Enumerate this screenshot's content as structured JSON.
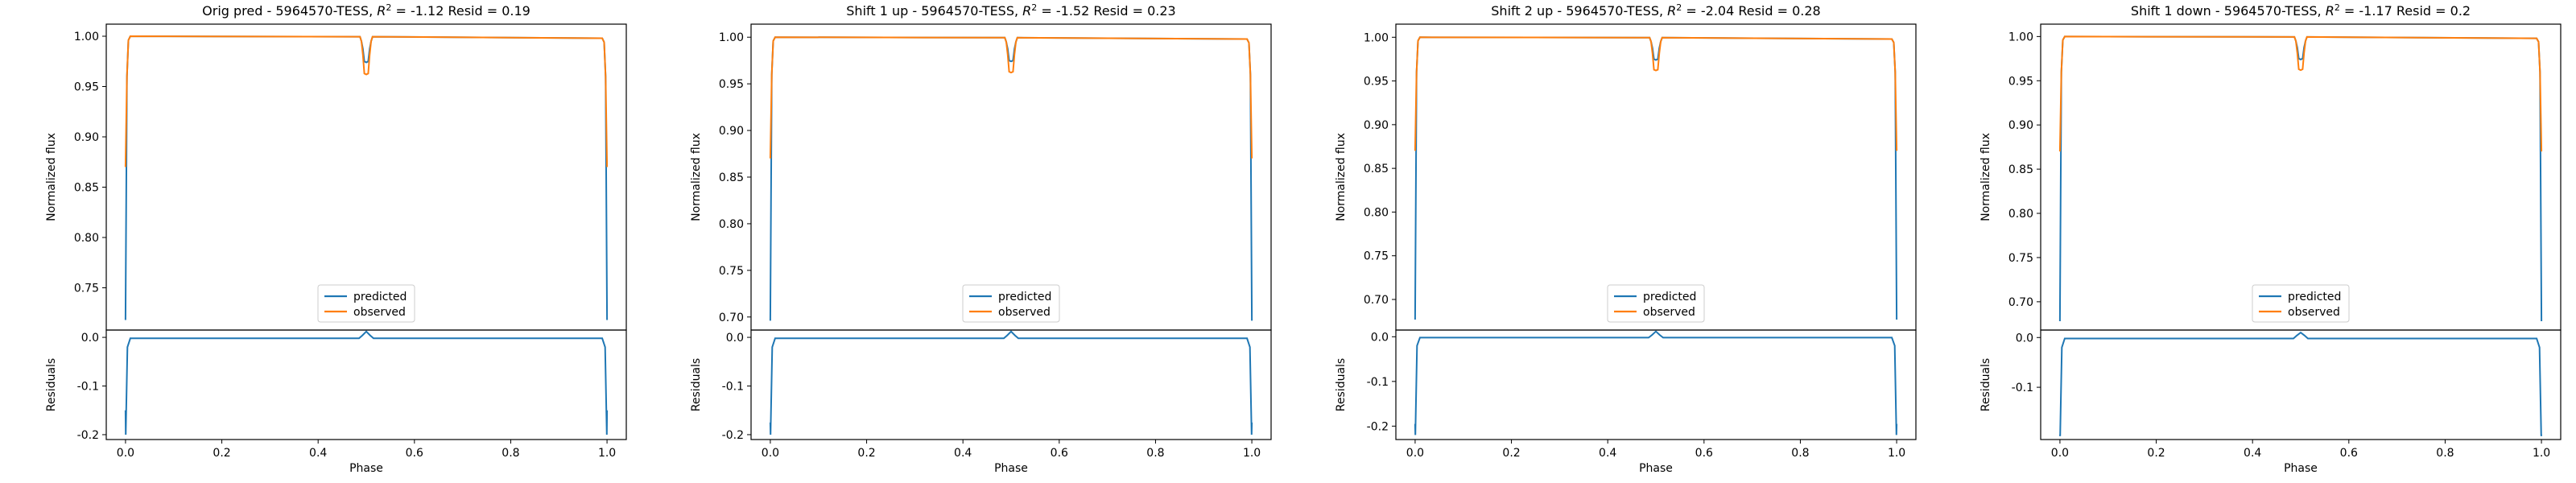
{
  "colors": {
    "predicted": "#1f77b4",
    "observed": "#ff7f0e",
    "axes": "#000000"
  },
  "chart_data": [
    {
      "type": "line",
      "title_prefix": "Orig pred - 5964570-TESS, ",
      "title_suffix": " = -1.12 Resid = 0.19",
      "r2_symbol": "R",
      "r2_sup": "2",
      "top": {
        "ylabel": "Normalized flux",
        "ylim": [
          0.708,
          1.012
        ],
        "yticks": [
          0.75,
          0.8,
          0.85,
          0.9,
          0.95,
          1.0
        ],
        "yticklabels": [
          "0.75",
          "0.80",
          "0.85",
          "0.90",
          "0.95",
          "1.00"
        ],
        "predicted_edge": 0.718,
        "observed_edge": 0.87,
        "dip_predicted": 0.975,
        "dip_observed": 0.963,
        "legend": [
          "predicted",
          "observed"
        ],
        "legend_loc": "lower center"
      },
      "bottom": {
        "ylabel": "Residuals",
        "ylim": [
          -0.21,
          0.015
        ],
        "yticks": [
          -0.2,
          -0.1,
          0.0
        ],
        "yticklabels": [
          "-0.2",
          "-0.1",
          "0.0"
        ],
        "edge_inner": -0.2,
        "edge_outer": -0.15,
        "bump": 0.012
      },
      "xlabel": "Phase",
      "xlim": [
        -0.04,
        1.04
      ],
      "xticks": [
        0.0,
        0.2,
        0.4,
        0.6,
        0.8,
        1.0
      ],
      "xticklabels": [
        "0.0",
        "0.2",
        "0.4",
        "0.6",
        "0.8",
        "1.0"
      ]
    },
    {
      "type": "line",
      "title_prefix": "Shift 1 up - 5964570-TESS, ",
      "title_suffix": " = -1.52 Resid = 0.23",
      "r2_symbol": "R",
      "r2_sup": "2",
      "top": {
        "ylabel": "Normalized flux",
        "ylim": [
          0.686,
          1.014
        ],
        "yticks": [
          0.7,
          0.75,
          0.8,
          0.85,
          0.9,
          0.95,
          1.0
        ],
        "yticklabels": [
          "0.70",
          "0.75",
          "0.80",
          "0.85",
          "0.90",
          "0.95",
          "1.00"
        ],
        "predicted_edge": 0.696,
        "observed_edge": 0.87,
        "dip_predicted": 0.975,
        "dip_observed": 0.963,
        "legend": [
          "predicted",
          "observed"
        ],
        "legend_loc": "lower center"
      },
      "bottom": {
        "ylabel": "Residuals",
        "ylim": [
          -0.21,
          0.015
        ],
        "yticks": [
          -0.2,
          -0.1,
          0.0
        ],
        "yticklabels": [
          "-0.2",
          "-0.1",
          "0.0"
        ],
        "edge_inner": -0.2,
        "edge_outer": -0.175,
        "bump": 0.012
      },
      "xlabel": "Phase",
      "xlim": [
        -0.04,
        1.04
      ],
      "xticks": [
        0.0,
        0.2,
        0.4,
        0.6,
        0.8,
        1.0
      ],
      "xticklabels": [
        "0.0",
        "0.2",
        "0.4",
        "0.6",
        "0.8",
        "1.0"
      ]
    },
    {
      "type": "line",
      "title_prefix": "Shift 2 up - 5964570-TESS, ",
      "title_suffix": " = -2.04 Resid = 0.28",
      "r2_symbol": "R",
      "r2_sup": "2",
      "top": {
        "ylabel": "Normalized flux",
        "ylim": [
          0.665,
          1.015
        ],
        "yticks": [
          0.7,
          0.75,
          0.8,
          0.85,
          0.9,
          0.95,
          1.0
        ],
        "yticklabels": [
          "0.70",
          "0.75",
          "0.80",
          "0.85",
          "0.90",
          "0.95",
          "1.00"
        ],
        "predicted_edge": 0.677,
        "observed_edge": 0.87,
        "dip_predicted": 0.975,
        "dip_observed": 0.963,
        "legend": [
          "predicted",
          "observed"
        ],
        "legend_loc": "lower center"
      },
      "bottom": {
        "ylabel": "Residuals",
        "ylim": [
          -0.23,
          0.015
        ],
        "yticks": [
          -0.2,
          -0.1,
          0.0
        ],
        "yticklabels": [
          "-0.2",
          "-0.1",
          "0.0"
        ],
        "edge_inner": -0.22,
        "edge_outer": -0.195,
        "bump": 0.012
      },
      "xlabel": "Phase",
      "xlim": [
        -0.04,
        1.04
      ],
      "xticks": [
        0.0,
        0.2,
        0.4,
        0.6,
        0.8,
        1.0
      ],
      "xticklabels": [
        "0.0",
        "0.2",
        "0.4",
        "0.6",
        "0.8",
        "1.0"
      ]
    },
    {
      "type": "line",
      "title_prefix": "Shift 1 down - 5964570-TESS, ",
      "title_suffix": " = -1.17 Resid = 0.2",
      "r2_symbol": "R",
      "r2_sup": "2",
      "top": {
        "ylabel": "Normalized flux",
        "ylim": [
          0.668,
          1.014
        ],
        "yticks": [
          0.7,
          0.75,
          0.8,
          0.85,
          0.9,
          0.95,
          1.0
        ],
        "yticklabels": [
          "0.70",
          "0.75",
          "0.80",
          "0.85",
          "0.90",
          "0.95",
          "1.00"
        ],
        "predicted_edge": 0.678,
        "observed_edge": 0.87,
        "dip_predicted": 0.975,
        "dip_observed": 0.963,
        "legend": [
          "predicted",
          "observed"
        ],
        "legend_loc": "lower center"
      },
      "bottom": {
        "ylabel": "Residuals",
        "ylim": [
          -0.205,
          0.015
        ],
        "yticks": [
          -0.1,
          0.0
        ],
        "yticklabels": [
          "-0.1",
          "0.0"
        ],
        "edge_inner": -0.198,
        "edge_outer": -0.195,
        "bump": 0.01
      },
      "xlabel": "Phase",
      "xlim": [
        -0.04,
        1.04
      ],
      "xticks": [
        0.0,
        0.2,
        0.4,
        0.6,
        0.8,
        1.0
      ],
      "xticklabels": [
        "0.0",
        "0.2",
        "0.4",
        "0.6",
        "0.8",
        "1.0"
      ]
    }
  ]
}
